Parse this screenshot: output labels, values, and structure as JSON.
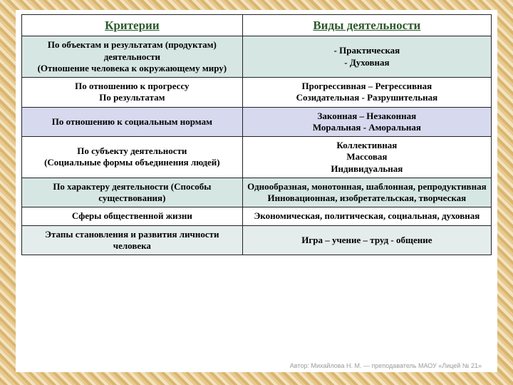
{
  "table": {
    "col_widths": [
      "47%",
      "53%"
    ],
    "header_bg": "#ffffff",
    "header_color": "#2c5a2c",
    "border_color": "#222222",
    "row_colors": [
      "#d6e6e3",
      "#ffffff",
      "#d7d9ee",
      "#ffffff",
      "#d6e6e3",
      "#ffffff",
      "#e4edeb"
    ],
    "headers": [
      "Критерии",
      "Виды деятельности"
    ],
    "rows": [
      {
        "left": [
          "По объектам и результатам (продуктам) деятельности",
          "(Отношение человека к окружающему миру)"
        ],
        "right": [
          "- Практическая",
          "- Духовная"
        ]
      },
      {
        "left": [
          "По отношению к прогрессу",
          "По результатам"
        ],
        "right": [
          "Прогрессивная – Регрессивная",
          "Созидательная - Разрушительная"
        ]
      },
      {
        "left": [
          "По отношению к социальным нормам"
        ],
        "right": [
          "Законная – Незаконная",
          "Моральная - Аморальная"
        ]
      },
      {
        "left": [
          "По субъекту деятельности",
          "(Социальные формы объединения людей)"
        ],
        "right": [
          "Коллективная",
          "Массовая",
          "Индивидуальная"
        ]
      },
      {
        "left": [
          "По характеру деятельности (Способы существования)"
        ],
        "right": [
          "Однообразная, монотонная, шаблонная, репродуктивная",
          "Инновационная, изобретательская, творческая"
        ]
      },
      {
        "left": [
          "Сферы общественной жизни"
        ],
        "right": [
          "Экономическая, политическая, социальная, духовная"
        ]
      },
      {
        "left": [
          "Этапы становления  и развития личности человека"
        ],
        "right": [
          "Игра – учение – труд - общение"
        ]
      }
    ]
  },
  "footer": "Автор: Михайлова Н. М. — преподаватель МАОУ «Лицей № 21»"
}
